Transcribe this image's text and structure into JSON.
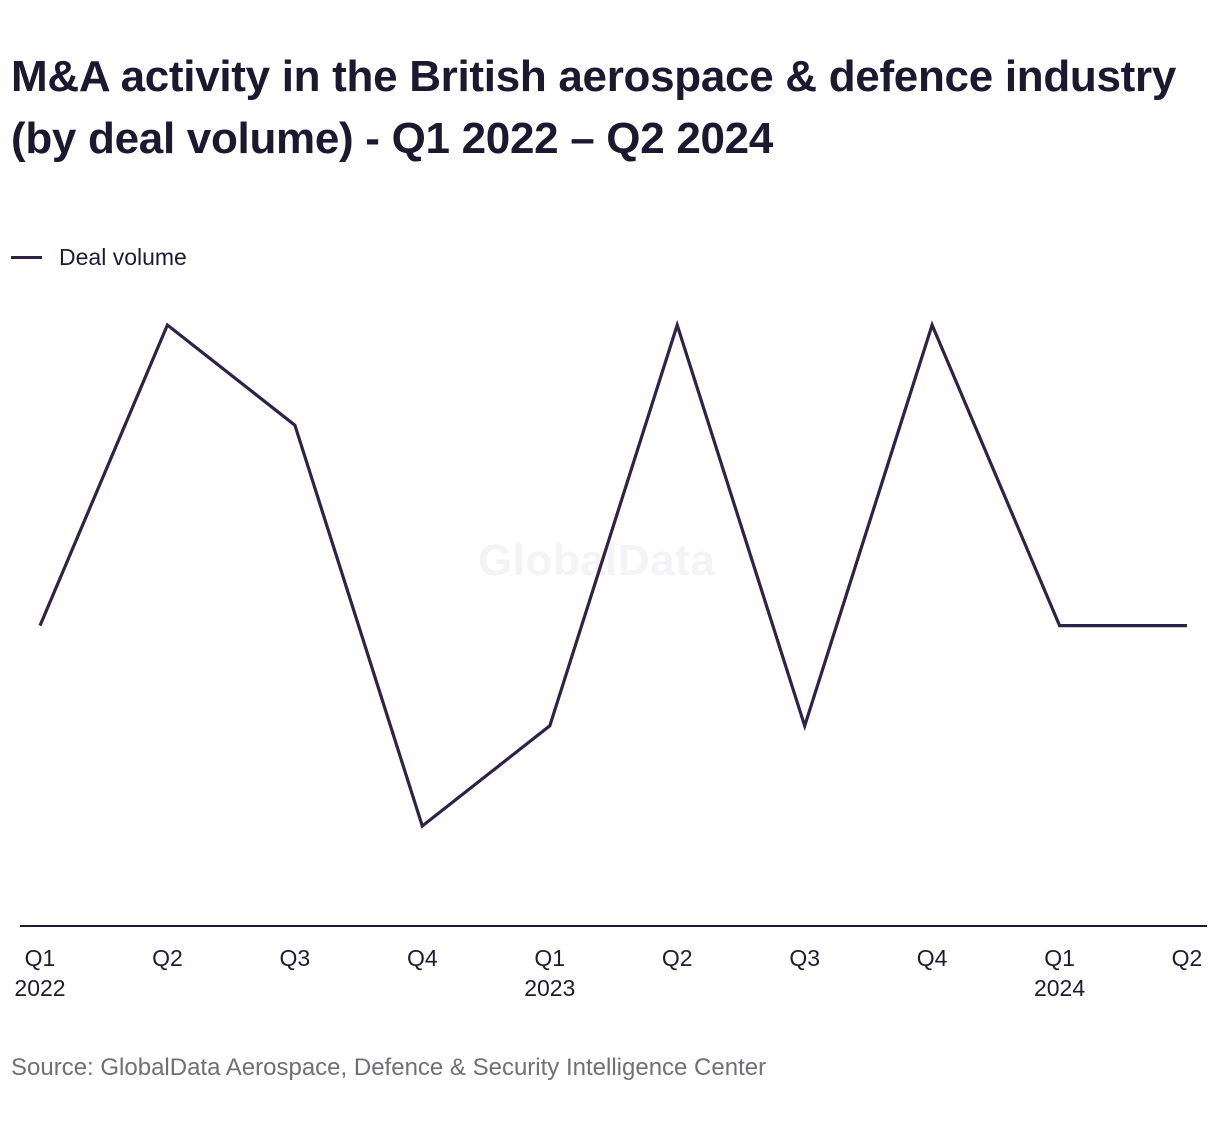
{
  "header": {
    "title": "M&A activity in the British aerospace & defence industry (by deal volume) - Q1 2022 – Q2 2024"
  },
  "legend": {
    "series_label": "Deal volume"
  },
  "watermark": "GlobalData",
  "source": "Source: GlobalData Aerospace, Defence & Security Intelligence Center",
  "colors": {
    "series": "#2f2148",
    "axis": "#1f1a33",
    "tick_text": "#1f1a33",
    "source_text": "#6f6f78"
  },
  "chart_data": {
    "type": "line",
    "title": "M&A activity in the British aerospace & defence industry (by deal volume) - Q1 2022 – Q2 2024",
    "xlabel": "",
    "ylabel": "",
    "categories": [
      [
        "Q1",
        "2022"
      ],
      [
        "Q2",
        ""
      ],
      [
        "Q3",
        ""
      ],
      [
        "Q4",
        ""
      ],
      [
        "Q1",
        "2023"
      ],
      [
        "Q2",
        ""
      ],
      [
        "Q3",
        ""
      ],
      [
        "Q4",
        ""
      ],
      [
        "Q1",
        "2024"
      ],
      [
        "Q2",
        ""
      ]
    ],
    "series": [
      {
        "name": "Deal volume",
        "values": [
          9,
          12,
          11,
          7,
          8,
          12,
          8,
          12,
          9,
          9
        ]
      }
    ],
    "ylim": [
      6,
      12.5
    ],
    "grid": false,
    "y_axis_labels": false,
    "legend_position": "top-left"
  }
}
